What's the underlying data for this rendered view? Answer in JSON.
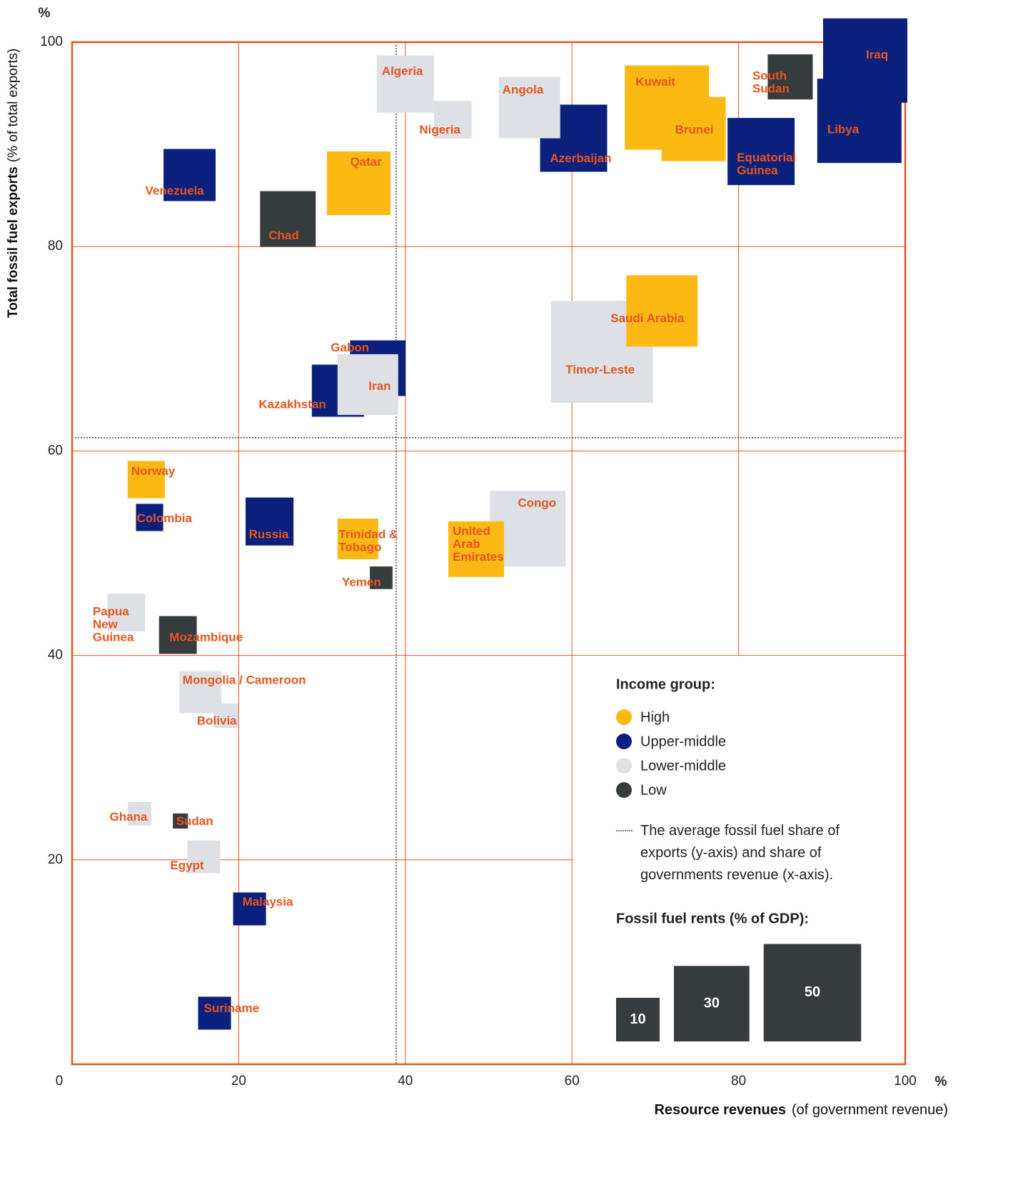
{
  "chart_data": {
    "type": "bubble",
    "x_label": "Resource  revenues",
    "x_label_note": "(of government revenue)",
    "y_label": "Total fossil fuel exports",
    "y_label_note": "(% of total exports)",
    "x_unit": "%",
    "y_unit": "%",
    "xlim": [
      0,
      100
    ],
    "ylim": [
      0,
      100
    ],
    "xticks": [
      0,
      20,
      40,
      60,
      80,
      100
    ],
    "yticks": [
      20,
      40,
      60,
      80,
      100
    ],
    "grid": true,
    "average_x": 38.9,
    "average_y": 61.3,
    "legend_title": "Income group:",
    "average_note": "The average fossil fuel share of exports (y-axis) and share of governments revenue (x-axis).",
    "size_title": "Fossil fuel rents (% of GDP):",
    "size_legend": [
      10,
      30,
      50
    ],
    "series": [
      {
        "name": "High",
        "color": "#fdb913",
        "labels": [
          "Kuwait",
          "Brunei",
          "Qatar",
          "Saudi Arabia",
          "Norway",
          "Trinidad & Tobago",
          "United Arab Emirates"
        ],
        "x": [
          71.4,
          74.6,
          34.4,
          70.8,
          8.9,
          34.3,
          48.5
        ],
        "y": [
          93.6,
          91.5,
          86.2,
          73.7,
          57.2,
          51.4,
          50.4
        ],
        "size": [
          37.4,
          21.7,
          21.3,
          26.8,
          7.3,
          8.7,
          16.3
        ]
      },
      {
        "name": "Upper-middle",
        "color": "#0b1f7c",
        "labels": [
          "Iraq",
          "Libya",
          "Equatorial Guinea",
          "Azerbaijan",
          "Venezuela",
          "Gabon",
          "Kazakhstan",
          "Colombia",
          "Russia",
          "Malaysia",
          "Suriname"
        ],
        "x": [
          95.2,
          94.5,
          82.7,
          60.2,
          14.1,
          36.7,
          31.9,
          9.3,
          23.7,
          21.3,
          17.1
        ],
        "y": [
          98.2,
          92.3,
          89.3,
          90.6,
          87.0,
          68.1,
          65.9,
          53.5,
          53.1,
          15.2,
          5.0
        ],
        "size": [
          37.4,
          37.4,
          23.7,
          23.7,
          14.3,
          16.3,
          14.3,
          3.9,
          12.1,
          5.7,
          5.7
        ]
      },
      {
        "name": "Lower-middle",
        "color": "#dde1e6",
        "labels": [
          "Algeria",
          "Nigeria",
          "Angola",
          "Timor-Leste",
          "Iran",
          "Congo",
          "Papua New Guinea",
          "Mongolia / Cameroon",
          "Bolivia",
          "Ghana",
          "Egypt"
        ],
        "x": [
          40.0,
          45.7,
          54.9,
          63.6,
          35.5,
          54.7,
          6.5,
          15.4,
          18.5,
          8.1,
          15.8
        ],
        "y": [
          95.9,
          92.4,
          93.6,
          69.7,
          66.5,
          52.4,
          44.2,
          36.4,
          34.1,
          24.5,
          20.3
        ],
        "size": [
          17.2,
          7.5,
          19.9,
          54.9,
          19.4,
          30.2,
          7.5,
          9.3,
          3.1,
          2.9,
          5.7
        ]
      },
      {
        "name": "Low",
        "color": "#363b3e",
        "labels": [
          "South Sudan",
          "Chad",
          "Yemen",
          "Mozambique",
          "Sudan"
        ],
        "x": [
          86.2,
          25.9,
          37.1,
          12.7,
          13.0
        ],
        "y": [
          96.6,
          82.7,
          47.6,
          42.0,
          23.8
        ],
        "size": [
          10.7,
          16.3,
          2.7,
          7.5,
          1.2
        ]
      }
    ]
  }
}
